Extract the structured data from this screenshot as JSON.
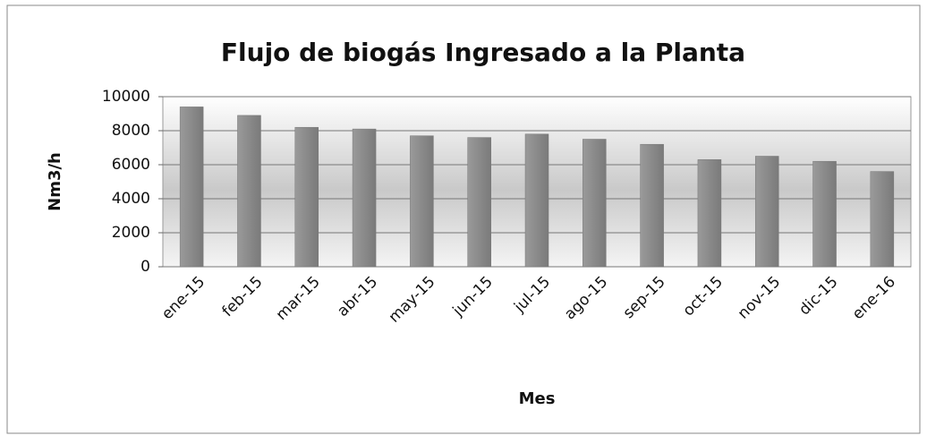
{
  "chart_data": {
    "type": "bar",
    "title": "Flujo de biogás Ingresado a la Planta",
    "x_label": "Mes",
    "y_label": "Nm3/h",
    "categories": [
      "ene-15",
      "feb-15",
      "mar-15",
      "abr-15",
      "may-15",
      "jun-15",
      "jul-15",
      "ago-15",
      "sep-15",
      "oct-15",
      "nov-15",
      "dic-15",
      "ene-16"
    ],
    "values": [
      9400,
      8900,
      8200,
      8100,
      7700,
      7600,
      7800,
      7500,
      7200,
      6300,
      6500,
      6200,
      5600
    ],
    "color": "#8c8c8c",
    "ylim": [
      0,
      10000
    ],
    "yticks": [
      0,
      2000,
      4000,
      6000,
      8000,
      10000
    ],
    "grid": true
  }
}
